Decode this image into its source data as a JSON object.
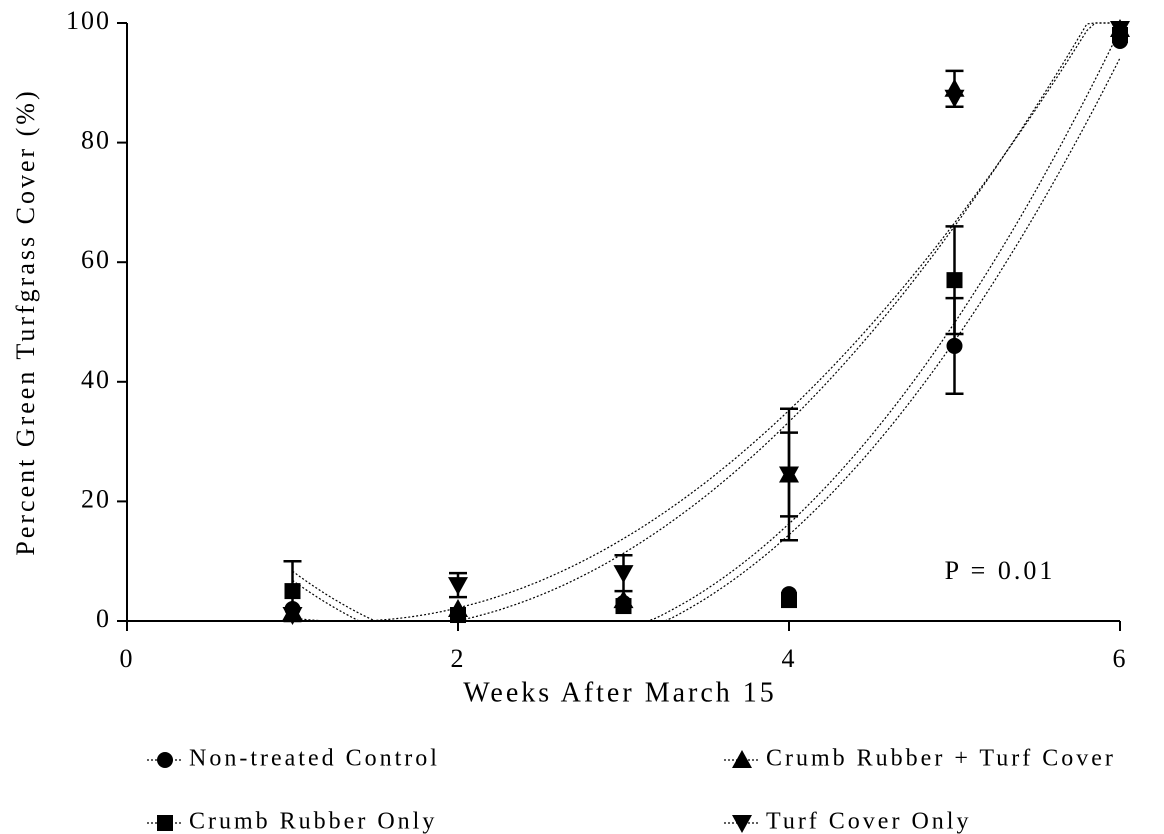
{
  "chart_data": {
    "type": "scatter",
    "x_label": "Weeks After March 15",
    "y_label": "Percent Green Turfgrass Cover (%)",
    "annotation": "P = 0.01",
    "trendline": "quadratic",
    "grid": false,
    "xlim": [
      0,
      6
    ],
    "xticks": [
      0,
      2,
      4,
      6
    ],
    "ylim": [
      0,
      100
    ],
    "yticks": [
      0,
      20,
      40,
      60,
      80,
      100
    ],
    "x": [
      1,
      2,
      3,
      4,
      5,
      6
    ],
    "series": [
      {
        "name": "Non-treated Control",
        "marker": "circle",
        "color": "#000000",
        "values": [
          2,
          1,
          3,
          4.5,
          46,
          97
        ],
        "errors": [
          null,
          null,
          null,
          null,
          8,
          null
        ]
      },
      {
        "name": "Crumb Rubber + Turf Cover",
        "marker": "triangle-up",
        "color": "#000000",
        "values": [
          1.5,
          2,
          3.5,
          24.5,
          89,
          99
        ],
        "errors": [
          null,
          null,
          null,
          11,
          3,
          null
        ]
      },
      {
        "name": "Crumb Rubber Only",
        "marker": "square",
        "color": "#000000",
        "values": [
          5,
          1,
          2.5,
          3.5,
          57,
          98
        ],
        "errors": [
          5,
          null,
          null,
          null,
          9,
          null
        ]
      },
      {
        "name": "Turf Cover Only",
        "marker": "triangle-down",
        "color": "#000000",
        "values": [
          1,
          6,
          8,
          24.5,
          87.5,
          99
        ],
        "errors": [
          null,
          2,
          3,
          7,
          null,
          null
        ]
      }
    ]
  }
}
